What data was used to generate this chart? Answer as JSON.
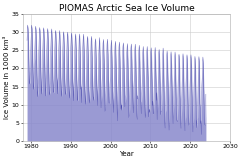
{
  "title": "PIOMAS Arctic Sea Ice Volume",
  "xlabel": "Year",
  "ylabel": "Ice Volume in 1000 km³",
  "xlim": [
    1978,
    2030
  ],
  "ylim": [
    0,
    35
  ],
  "yticks": [
    0,
    5,
    10,
    15,
    20,
    25,
    30,
    35
  ],
  "xticks": [
    1980,
    1990,
    2000,
    2010,
    2020,
    2030
  ],
  "line_color": "#4444aa",
  "fill_color": "#8888cc",
  "bg_color": "#ffffff",
  "grid_color": "#cccccc",
  "start_year": 1979,
  "end_year": 2023,
  "title_fontsize": 6.5,
  "label_fontsize": 5,
  "tick_fontsize": 4.5
}
